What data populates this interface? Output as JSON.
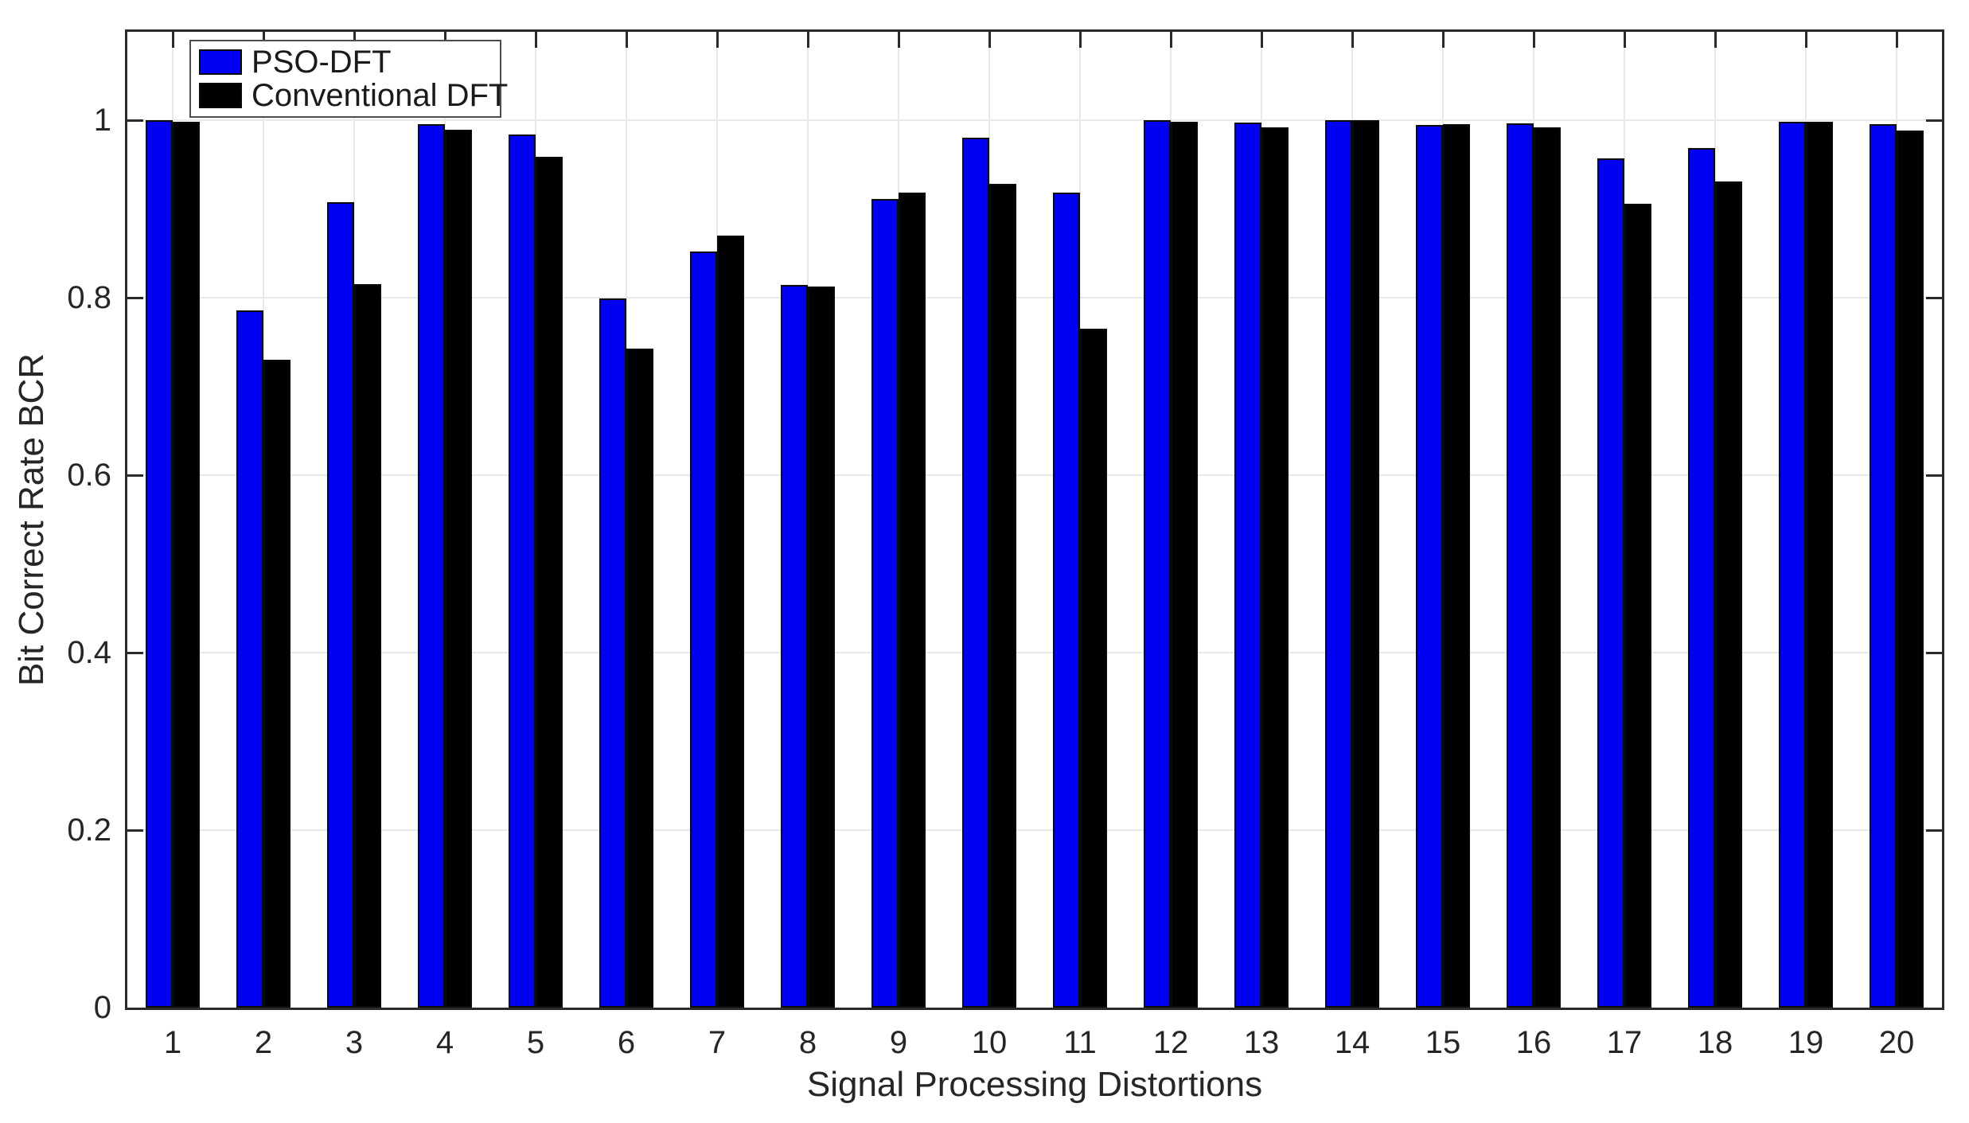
{
  "chart_data": {
    "type": "bar",
    "title": "",
    "xlabel": "Signal Processing Distortions",
    "ylabel": "Bit Correct Rate BCR",
    "categories": [
      "1",
      "2",
      "3",
      "4",
      "5",
      "6",
      "7",
      "8",
      "9",
      "10",
      "11",
      "12",
      "13",
      "14",
      "15",
      "16",
      "17",
      "18",
      "19",
      "20"
    ],
    "series": [
      {
        "name": "PSO-DFT",
        "color": "#0000f2",
        "values": [
          1.0,
          0.786,
          0.908,
          0.996,
          0.984,
          0.799,
          0.852,
          0.815,
          0.912,
          0.981,
          0.919,
          1.0,
          0.998,
          1.0,
          0.995,
          0.997,
          0.957,
          0.969,
          0.999,
          0.996
        ]
      },
      {
        "name": "Conventional DFT",
        "color": "#000000",
        "values": [
          0.999,
          0.73,
          0.816,
          0.99,
          0.959,
          0.743,
          0.87,
          0.813,
          0.919,
          0.929,
          0.765,
          0.999,
          0.992,
          1.0,
          0.996,
          0.992,
          0.906,
          0.931,
          0.999,
          0.989
        ]
      }
    ],
    "ylim": [
      0,
      1.1
    ],
    "yticks": [
      0,
      0.2,
      0.4,
      0.6,
      0.8,
      1
    ],
    "ytick_labels": [
      "0",
      "0.2",
      "0.4",
      "0.6",
      "0.8",
      "1"
    ],
    "grid": true,
    "legend_position": "top-left",
    "colors": {
      "axis": "#2b2b2b",
      "grid": "#e9e9e9",
      "background": "#ffffff"
    }
  }
}
